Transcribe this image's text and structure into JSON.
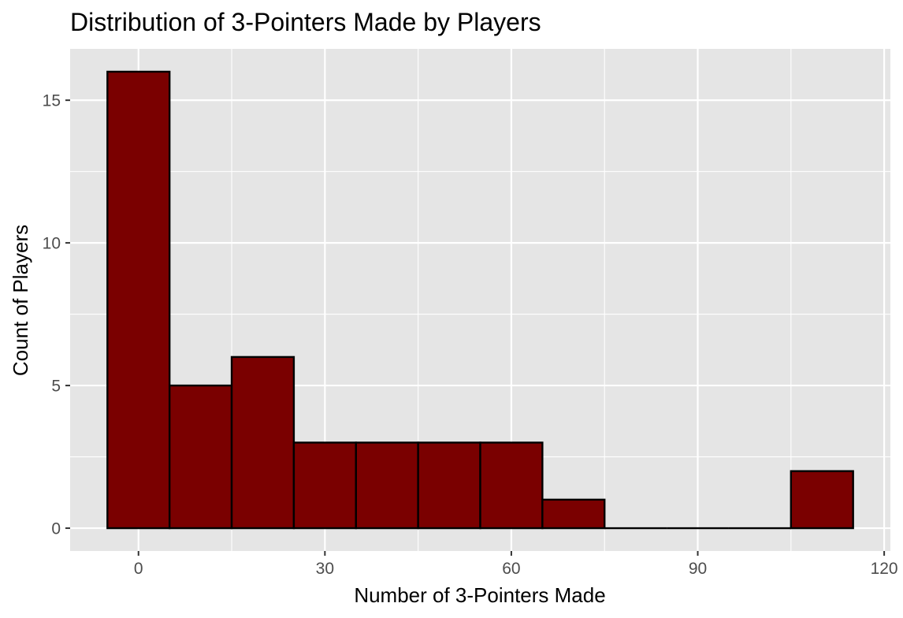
{
  "chart_data": {
    "type": "bar",
    "title": "Distribution of 3-Pointers Made by Players",
    "xlabel": "Number of 3-Pointers Made",
    "ylabel": "Count of Players",
    "bins": [
      {
        "x0": -5,
        "x1": 5,
        "count": 16
      },
      {
        "x0": 5,
        "x1": 15,
        "count": 5
      },
      {
        "x0": 15,
        "x1": 25,
        "count": 6
      },
      {
        "x0": 25,
        "x1": 35,
        "count": 3
      },
      {
        "x0": 35,
        "x1": 45,
        "count": 3
      },
      {
        "x0": 45,
        "x1": 55,
        "count": 3
      },
      {
        "x0": 55,
        "x1": 65,
        "count": 3
      },
      {
        "x0": 65,
        "x1": 75,
        "count": 1
      },
      {
        "x0": 75,
        "x1": 85,
        "count": 0
      },
      {
        "x0": 85,
        "x1": 95,
        "count": 0
      },
      {
        "x0": 95,
        "x1": 105,
        "count": 0
      },
      {
        "x0": 105,
        "x1": 115,
        "count": 2
      }
    ],
    "xlim": [
      -11,
      121
    ],
    "ylim": [
      -0.8,
      16.8
    ],
    "xticks": [
      0,
      30,
      60,
      90,
      120
    ],
    "xtick_labels": [
      "0",
      "30",
      "60",
      "90",
      "120"
    ],
    "xminor": [
      15,
      45,
      75,
      105
    ],
    "yticks": [
      0,
      5,
      10,
      15
    ],
    "ytick_labels": [
      "0",
      "5",
      "10",
      "15"
    ],
    "yminor": [
      2.5,
      7.5,
      12.5
    ],
    "grid": true,
    "legend": "none",
    "colors": {
      "bar_fill": "#7a0000",
      "bar_outline": "#000000",
      "panel_background": "#e5e5e5",
      "grid_line": "#ffffff"
    }
  }
}
